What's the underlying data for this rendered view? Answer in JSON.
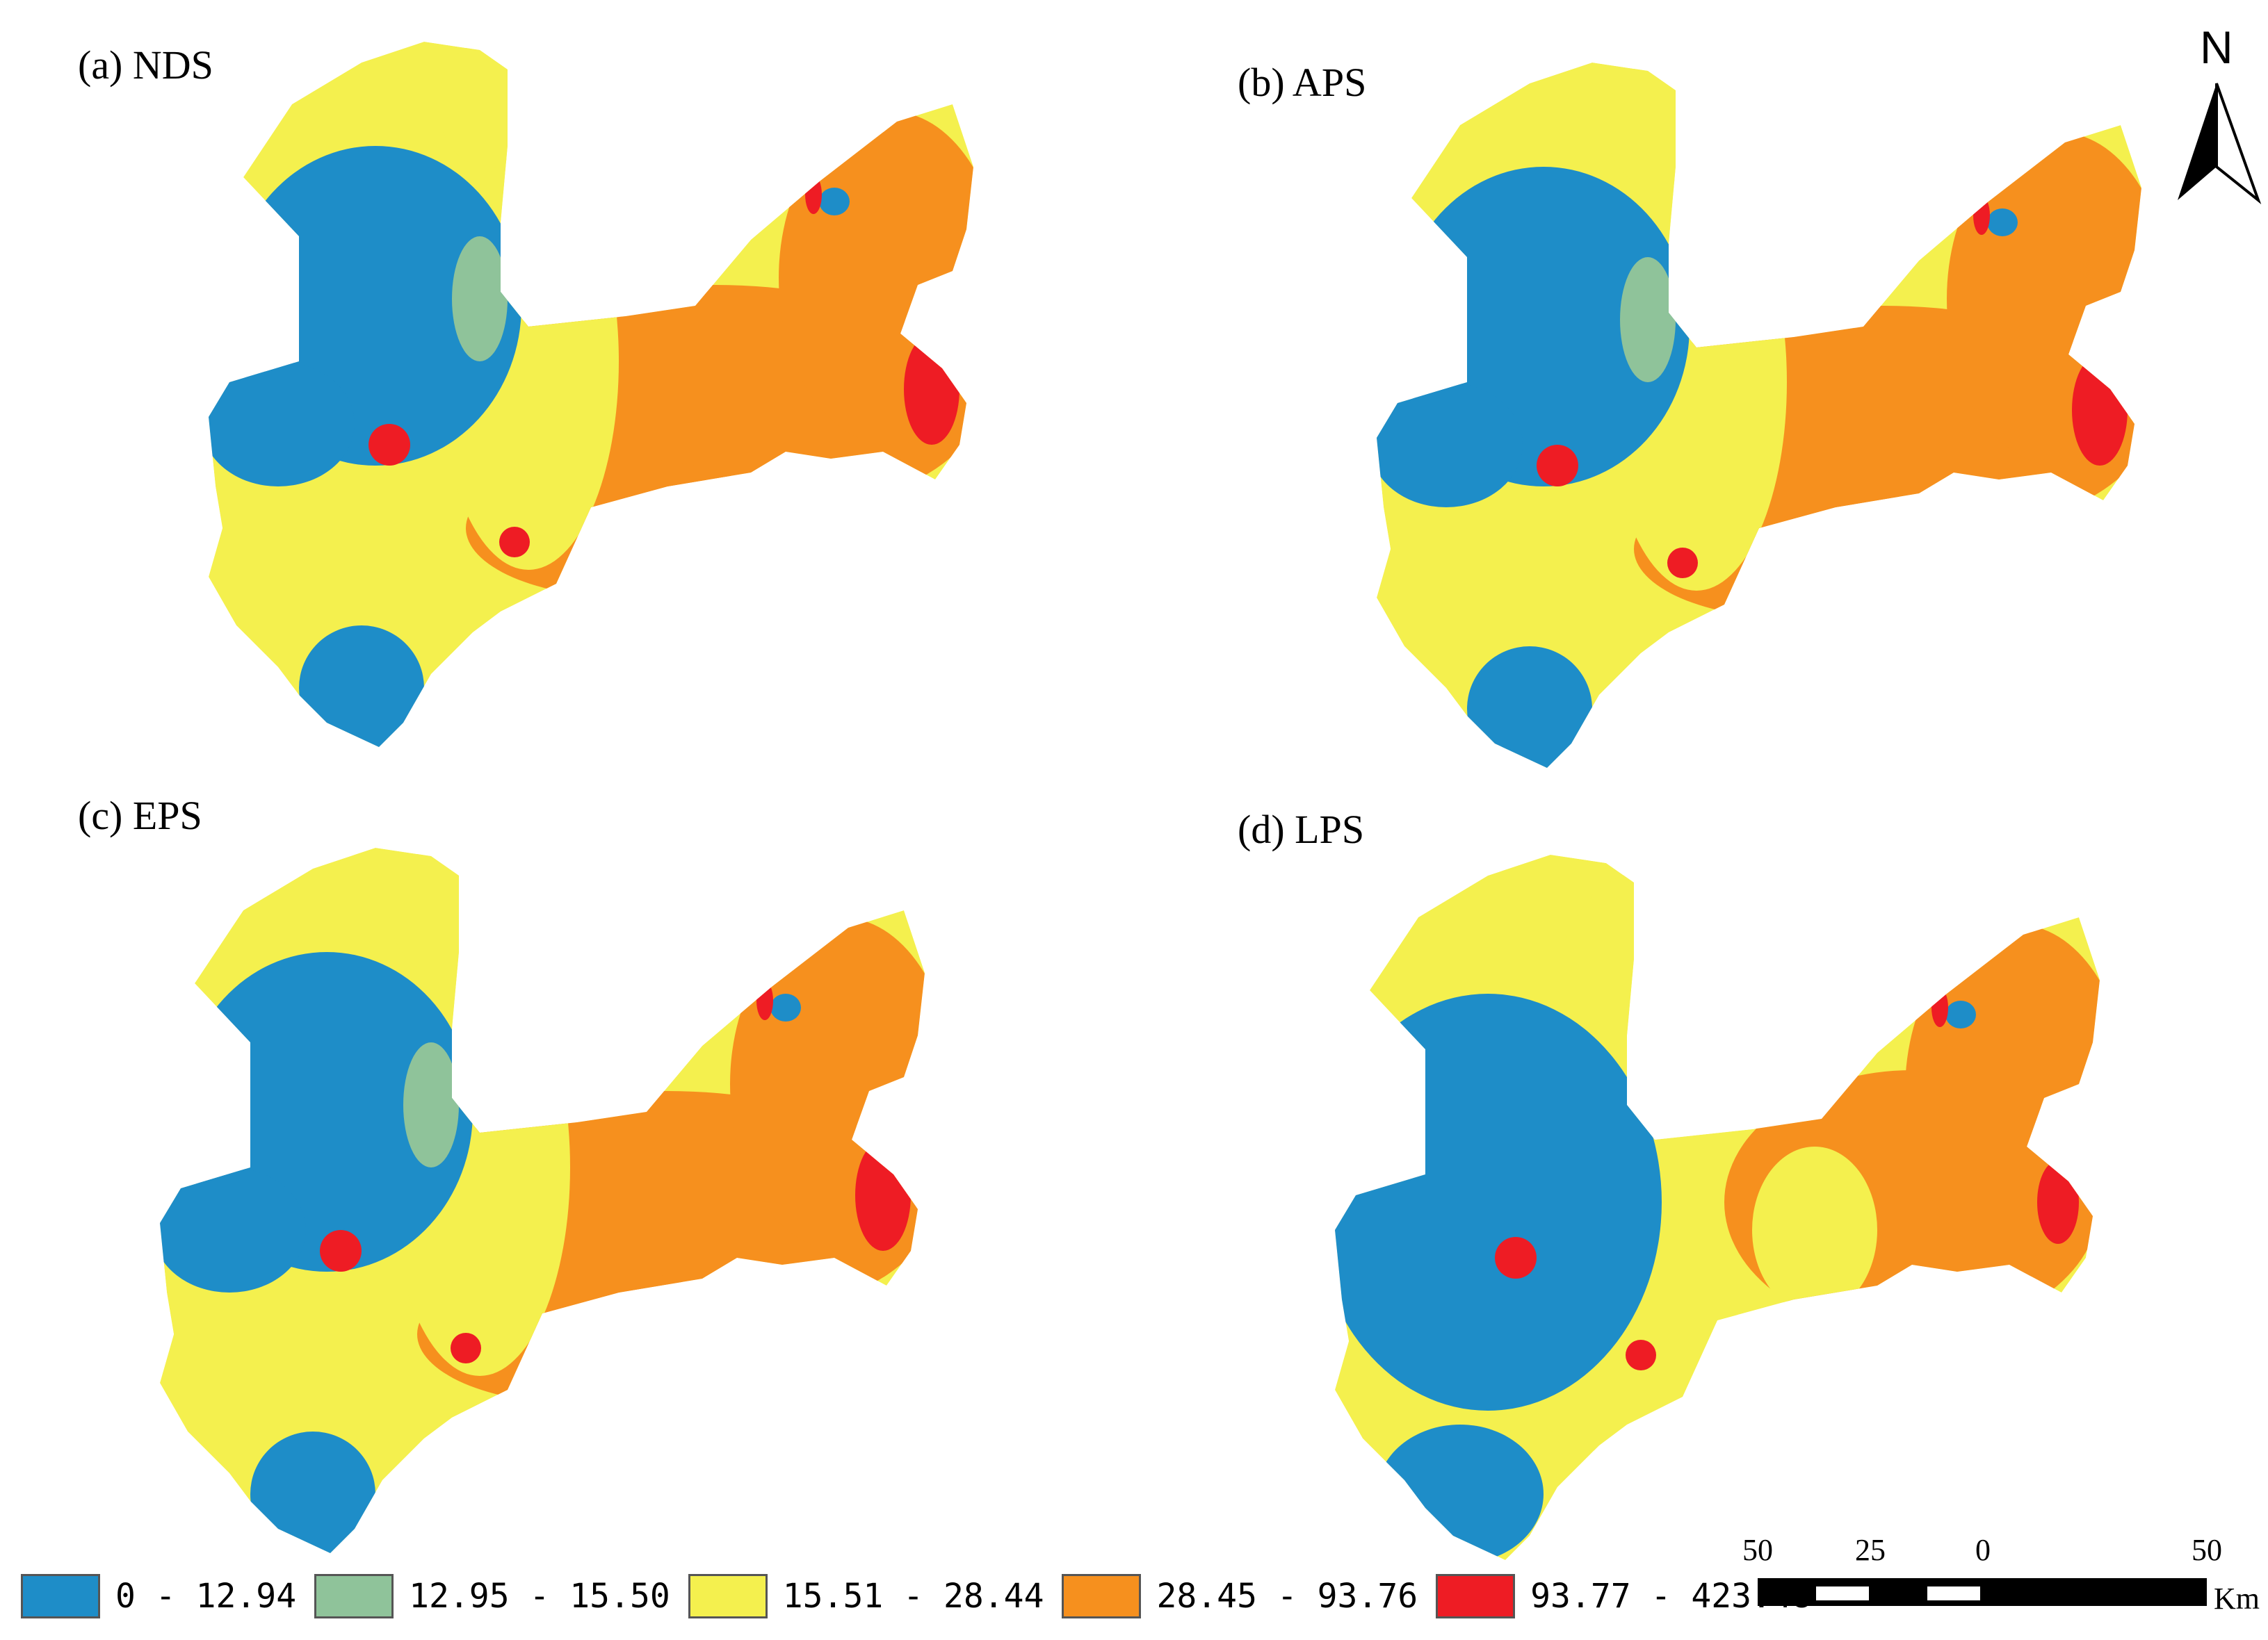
{
  "panels": [
    {
      "id": "a",
      "label": "(a) NDS"
    },
    {
      "id": "b",
      "label": "(b) APS"
    },
    {
      "id": "c",
      "label": "(c) EPS"
    },
    {
      "id": "d",
      "label": "(d) LPS"
    }
  ],
  "north_arrow": {
    "letter": "N"
  },
  "legend": [
    {
      "label": "0 - 12.94",
      "color": "#1e8dc8"
    },
    {
      "label": "12.95 - 15.50",
      "color": "#8fc39a"
    },
    {
      "label": "15.51 - 28.44",
      "color": "#f4f04e"
    },
    {
      "label": "28.45 - 93.76",
      "color": "#f6901e"
    },
    {
      "label": "93.77 - 423.48",
      "color": "#ee1c24"
    }
  ],
  "scale_bar": {
    "ticks": [
      "50",
      "25",
      "0",
      "50"
    ],
    "unit": "Km"
  },
  "colors": {
    "outline": "#555555",
    "background": "#ffffff"
  }
}
